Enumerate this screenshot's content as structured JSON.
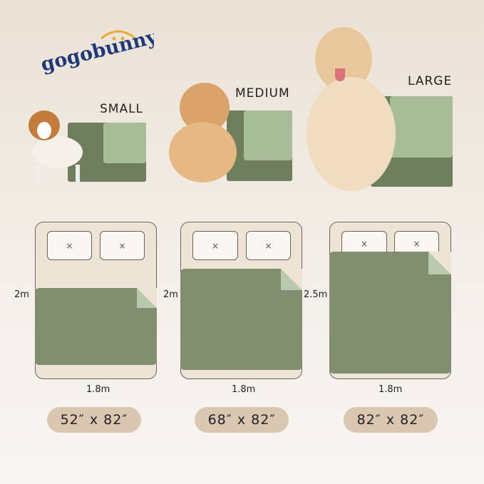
{
  "brand": {
    "logo_text": "gogobunny",
    "colors": {
      "text": "#1f3a78",
      "accent": "#e9a93a"
    }
  },
  "colors": {
    "pad_green": "#828f6e",
    "pad_light": "#b9c9ad",
    "bed": "#ede4d6",
    "pill": "#d9c7b2"
  },
  "sizes": [
    {
      "label": "SMALL",
      "dog": "small-puppy",
      "bed_length": "2m",
      "bed_width": "1.8m",
      "dimension": "52″ x 82″",
      "pad_length": "2m"
    },
    {
      "label": "MEDIUM",
      "dog": "fluffy-dog",
      "bed_length": "2m",
      "bed_width": "1.8m",
      "dimension": "68″ x 82″"
    },
    {
      "label": "LARGE",
      "dog": "golden-retriever",
      "bed_length": "2.5m",
      "bed_width": "1.8m",
      "dimension": "82″ x 82″"
    }
  ],
  "pillow_mark": "×"
}
